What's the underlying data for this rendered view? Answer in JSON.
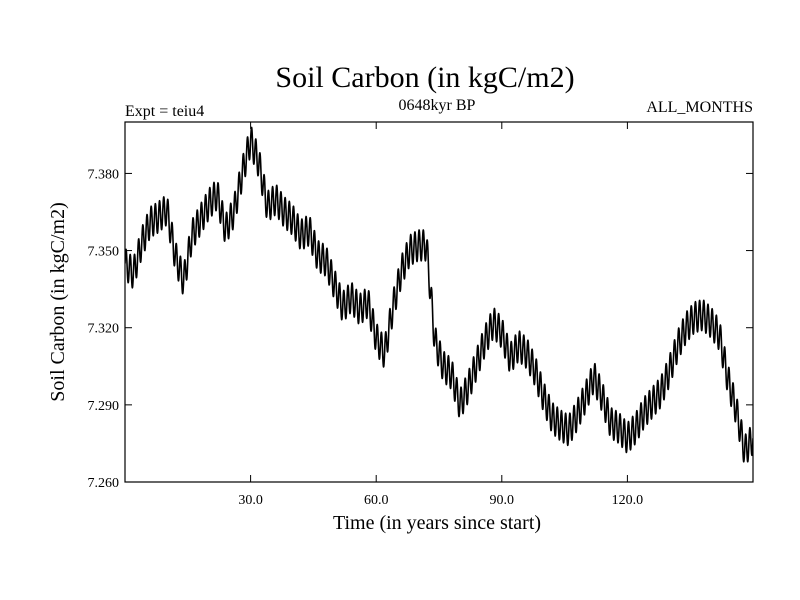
{
  "chart_data": {
    "type": "line",
    "title": "Soil Carbon (in kgC/m2)",
    "subtitle_left": "Expt = teiu4",
    "subtitle_center": "0648kyr BP",
    "subtitle_right": "ALL_MONTHS",
    "xlabel": "Time (in years since start)",
    "ylabel": "Soil Carbon (in kgC/m2)",
    "xlim": [
      0,
      150
    ],
    "ylim": [
      7.26,
      7.4
    ],
    "xticks": [
      30,
      60,
      90,
      120
    ],
    "xtick_labels": [
      "30.0",
      "60.0",
      "90.0",
      "120.0"
    ],
    "yticks": [
      7.26,
      7.29,
      7.32,
      7.35,
      7.38
    ],
    "ytick_labels": [
      "7.260",
      "7.290",
      "7.320",
      "7.350",
      "7.380"
    ],
    "grid": false,
    "line_color": "#000000",
    "series": [
      {
        "trend": {
          "x": [
            0,
            2,
            4,
            6,
            8,
            10,
            12,
            14,
            16,
            18,
            20,
            22,
            24,
            26,
            28,
            30,
            32,
            34,
            36,
            38,
            40,
            42,
            44,
            46,
            48,
            50,
            52,
            54,
            56,
            58,
            60,
            62,
            64,
            66,
            68,
            70,
            72,
            74,
            76,
            78,
            80,
            82,
            84,
            86,
            88,
            90,
            92,
            94,
            96,
            98,
            100,
            102,
            104,
            106,
            108,
            110,
            112,
            114,
            116,
            118,
            120,
            122,
            124,
            126,
            128,
            130,
            132,
            134,
            136,
            138,
            140,
            142,
            144,
            146,
            148,
            150
          ],
          "y": [
            7.345,
            7.341,
            7.353,
            7.361,
            7.363,
            7.366,
            7.348,
            7.338,
            7.356,
            7.362,
            7.368,
            7.372,
            7.358,
            7.365,
            7.38,
            7.393,
            7.384,
            7.367,
            7.37,
            7.365,
            7.362,
            7.356,
            7.358,
            7.348,
            7.346,
            7.337,
            7.328,
            7.332,
            7.327,
            7.33,
            7.316,
            7.31,
            7.328,
            7.342,
            7.35,
            7.352,
            7.352,
            7.315,
            7.305,
            7.302,
            7.29,
            7.297,
            7.306,
            7.315,
            7.322,
            7.318,
            7.308,
            7.313,
            7.31,
            7.303,
            7.293,
            7.285,
            7.282,
            7.28,
            7.286,
            7.293,
            7.301,
            7.293,
            7.283,
            7.281,
            7.277,
            7.281,
            7.287,
            7.291,
            7.295,
            7.303,
            7.313,
            7.32,
            7.324,
            7.325,
            7.322,
            7.317,
            7.3,
            7.288,
            7.272,
            7.277
          ]
        },
        "seasonal_amplitude": 0.006,
        "cycles_per_year": 1
      }
    ]
  }
}
